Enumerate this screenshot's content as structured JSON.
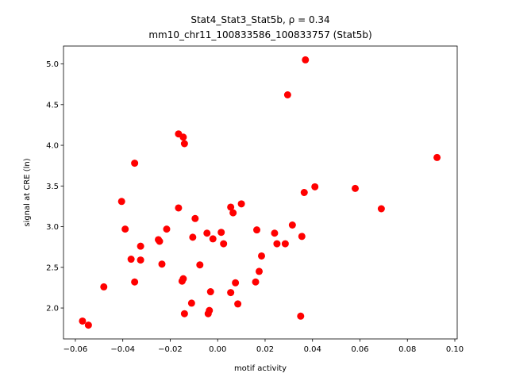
{
  "chart_data": {
    "type": "scatter",
    "title_line1": "Stat4_Stat3_Stat5b, ρ = 0.34",
    "title_line2": "mm10_chr11_100833586_100833757 (Stat5b)",
    "xlabel": "motif activity",
    "ylabel": "signal at CRE (ln)",
    "xlim": [
      -0.065,
      0.101
    ],
    "ylim": [
      1.62,
      5.22
    ],
    "x_ticks": [
      -0.06,
      -0.04,
      -0.02,
      0.0,
      0.02,
      0.04,
      0.06,
      0.08,
      0.1
    ],
    "x_tick_labels": [
      "−0.06",
      "−0.04",
      "−0.02",
      "0.00",
      "0.02",
      "0.04",
      "0.06",
      "0.08",
      "0.10"
    ],
    "y_ticks": [
      2.0,
      2.5,
      3.0,
      3.5,
      4.0,
      4.5,
      5.0
    ],
    "y_tick_labels": [
      "2.0",
      "2.5",
      "3.0",
      "3.5",
      "4.0",
      "4.5",
      "5.0"
    ],
    "marker_color": "#ff0000",
    "grid": false,
    "points": [
      {
        "x": -0.057,
        "y": 1.84
      },
      {
        "x": -0.0545,
        "y": 1.79
      },
      {
        "x": -0.048,
        "y": 2.26
      },
      {
        "x": -0.0405,
        "y": 3.31
      },
      {
        "x": -0.039,
        "y": 2.97
      },
      {
        "x": -0.0365,
        "y": 2.6
      },
      {
        "x": -0.035,
        "y": 3.78
      },
      {
        "x": -0.035,
        "y": 2.32
      },
      {
        "x": -0.0325,
        "y": 2.76
      },
      {
        "x": -0.0325,
        "y": 2.59
      },
      {
        "x": -0.025,
        "y": 2.84
      },
      {
        "x": -0.0245,
        "y": 2.82
      },
      {
        "x": -0.0235,
        "y": 2.54
      },
      {
        "x": -0.0215,
        "y": 2.97
      },
      {
        "x": -0.0165,
        "y": 4.14
      },
      {
        "x": -0.0165,
        "y": 3.23
      },
      {
        "x": -0.015,
        "y": 2.33
      },
      {
        "x": -0.0145,
        "y": 2.36
      },
      {
        "x": -0.0145,
        "y": 4.1
      },
      {
        "x": -0.014,
        "y": 4.02
      },
      {
        "x": -0.014,
        "y": 1.93
      },
      {
        "x": -0.011,
        "y": 2.06
      },
      {
        "x": -0.0105,
        "y": 2.87
      },
      {
        "x": -0.0095,
        "y": 3.1
      },
      {
        "x": -0.0075,
        "y": 2.53
      },
      {
        "x": -0.0045,
        "y": 2.92
      },
      {
        "x": -0.004,
        "y": 1.93
      },
      {
        "x": -0.0035,
        "y": 1.97
      },
      {
        "x": -0.003,
        "y": 2.2
      },
      {
        "x": -0.002,
        "y": 2.85
      },
      {
        "x": 0.0015,
        "y": 2.93
      },
      {
        "x": 0.0025,
        "y": 2.79
      },
      {
        "x": 0.0055,
        "y": 3.24
      },
      {
        "x": 0.0055,
        "y": 2.19
      },
      {
        "x": 0.0065,
        "y": 3.17
      },
      {
        "x": 0.0075,
        "y": 2.31
      },
      {
        "x": 0.0085,
        "y": 2.05
      },
      {
        "x": 0.01,
        "y": 3.28
      },
      {
        "x": 0.016,
        "y": 2.32
      },
      {
        "x": 0.0165,
        "y": 2.96
      },
      {
        "x": 0.0175,
        "y": 2.45
      },
      {
        "x": 0.0185,
        "y": 2.64
      },
      {
        "x": 0.024,
        "y": 2.92
      },
      {
        "x": 0.025,
        "y": 2.79
      },
      {
        "x": 0.0285,
        "y": 2.79
      },
      {
        "x": 0.0295,
        "y": 4.62
      },
      {
        "x": 0.0315,
        "y": 3.02
      },
      {
        "x": 0.035,
        "y": 1.9
      },
      {
        "x": 0.0355,
        "y": 2.88
      },
      {
        "x": 0.0365,
        "y": 3.42
      },
      {
        "x": 0.037,
        "y": 5.05
      },
      {
        "x": 0.041,
        "y": 3.49
      },
      {
        "x": 0.058,
        "y": 3.47
      },
      {
        "x": 0.069,
        "y": 3.22
      },
      {
        "x": 0.0925,
        "y": 3.85
      }
    ]
  }
}
